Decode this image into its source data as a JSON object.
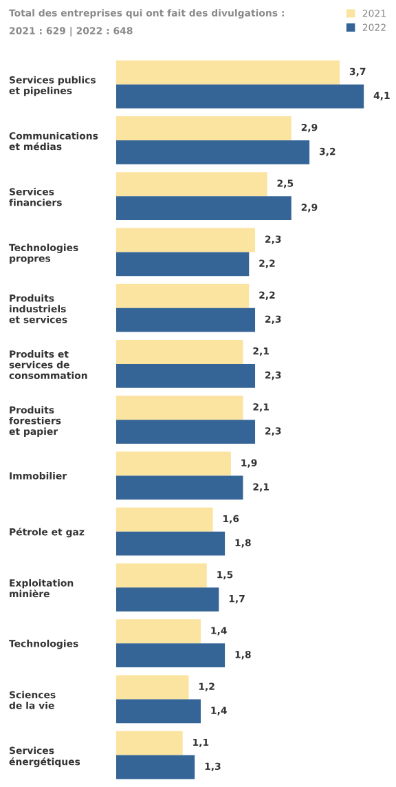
{
  "chart_data": {
    "type": "bar",
    "orientation": "horizontal",
    "title": "Total des entreprises qui ont fait des divulgations :",
    "subtitle": "2021 : 629 | 2022 : 648",
    "categories": [
      "Services publics\net pipelines",
      "Communications\net médias",
      "Services\nfinanciers",
      "Technologies\npropres",
      "Produits\nindustriels\net services",
      "Produits et\nservices de\nconsommation",
      "Produits\nforestiers\net papier",
      "Immobilier",
      "Pétrole et gaz",
      "Exploitation\nminière",
      "Technologies",
      "Sciences\nde la vie",
      "Services\nénergétiques"
    ],
    "series": [
      {
        "name": "2021",
        "color": "#fbe3a0",
        "values": [
          3.7,
          2.9,
          2.5,
          2.3,
          2.2,
          2.1,
          2.1,
          1.9,
          1.6,
          1.5,
          1.4,
          1.2,
          1.1
        ],
        "value_labels": [
          "3,7",
          "2,9",
          "2,5",
          "2,3",
          "2,2",
          "2,1",
          "2,1",
          "1,9",
          "1,6",
          "1,5",
          "1,4",
          "1,2",
          "1,1"
        ]
      },
      {
        "name": "2022",
        "color": "#356496",
        "values": [
          4.1,
          3.2,
          2.9,
          2.2,
          2.3,
          2.3,
          2.3,
          2.1,
          1.8,
          1.7,
          1.8,
          1.4,
          1.3
        ],
        "value_labels": [
          "4,1",
          "3,2",
          "2,9",
          "2,2",
          "2,3",
          "2,3",
          "2,3",
          "2,1",
          "1,8",
          "1,7",
          "1,8",
          "1,4",
          "1,3"
        ]
      }
    ],
    "legend": "top right",
    "grid": false,
    "tick_labels": "y"
  }
}
